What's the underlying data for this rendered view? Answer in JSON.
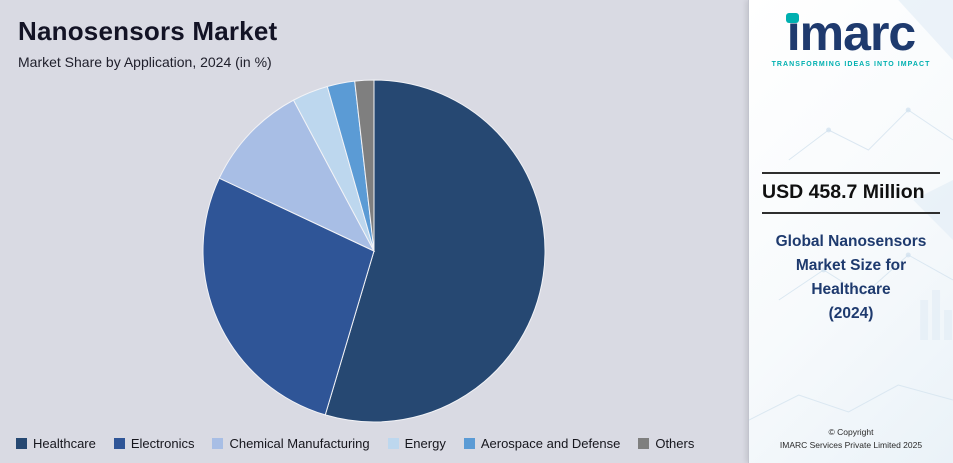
{
  "chart_data": {
    "type": "pie",
    "title": "Nanosensors Market",
    "subtitle": "Market Share by Application, 2024 (in %)",
    "categories": [
      "Healthcare",
      "Electronics",
      "Chemical Manufacturing",
      "Energy",
      "Aerospace and Defense",
      "Others"
    ],
    "values": [
      54.6,
      27.4,
      10.2,
      3.4,
      2.6,
      1.8
    ],
    "colors": [
      "#264872",
      "#2f5597",
      "#a8bee5",
      "#bdd7ee",
      "#5b9bd5",
      "#7f7f7f"
    ],
    "start_angle_deg": -90,
    "direction": "clockwise",
    "legend_position": "bottom",
    "data_labels": false
  },
  "side_panel": {
    "logo": {
      "text": "imarc",
      "tagline": "TRANSFORMING IDEAS INTO IMPACT"
    },
    "metric_value": "USD 458.7 Million",
    "metric_label_lines": [
      "Global Nanosensors",
      "Market Size for",
      "Healthcare",
      "(2024)"
    ],
    "copyright": [
      "© Copyright",
      "IMARC Services Private Limited 2025"
    ],
    "colors": {
      "brand_navy": "#1e3a6e",
      "brand_teal": "#00b0b0"
    }
  }
}
